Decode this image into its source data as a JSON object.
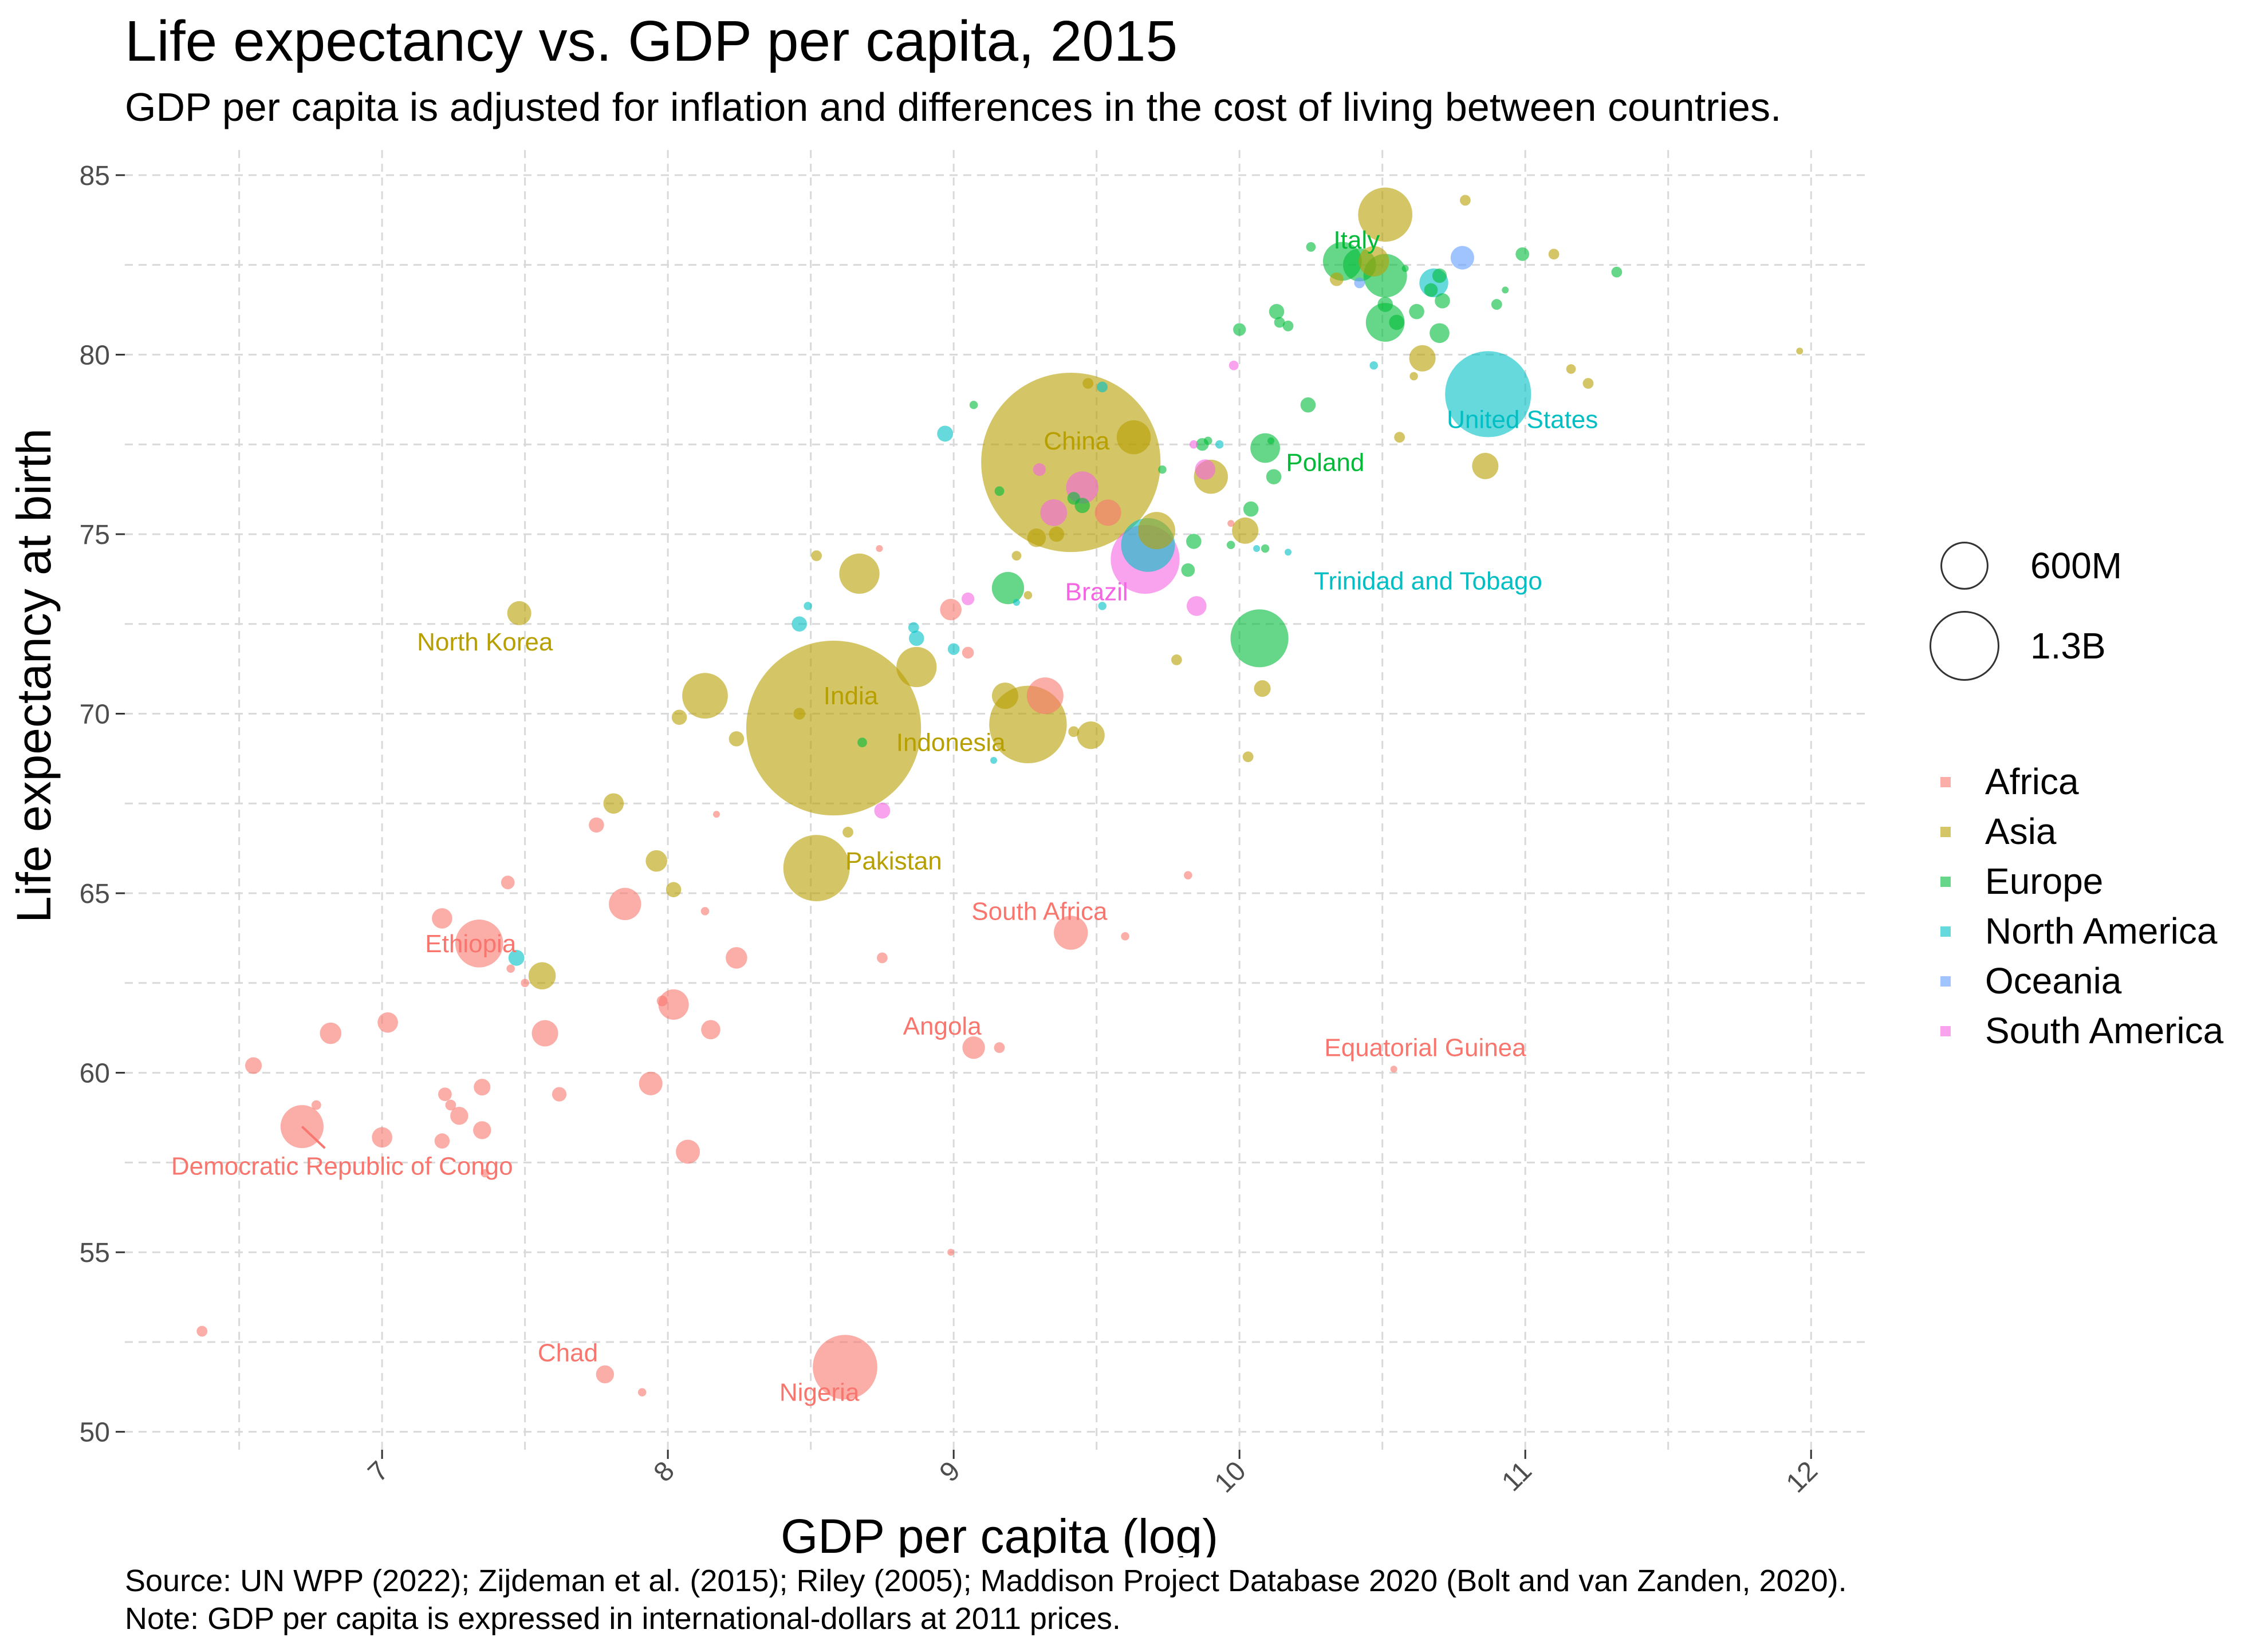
{
  "title": "Life expectancy vs. GDP per capita, 2015",
  "subtitle": "GDP per capita is adjusted for inflation and differences in the cost of living between countries.",
  "footer": {
    "source": "Source: UN WPP (2022); Zijdeman et al. (2015); Riley (2005); Maddison Project Database 2020 (Bolt and van Zanden, 2020).",
    "note": "Note: GDP per capita is expressed in international-dollars at 2011 prices."
  },
  "chart_data": {
    "type": "scatter",
    "title": "Life expectancy vs. GDP per capita, 2015",
    "xlabel": "GDP per capita (log)",
    "ylabel": "Life expectancy at birth",
    "xlim": [
      6.1,
      12.2
    ],
    "ylim": [
      49.5,
      85.7
    ],
    "x_ticks": [
      7,
      8,
      9,
      10,
      11,
      12
    ],
    "y_ticks": [
      50,
      55,
      60,
      65,
      70,
      75,
      80,
      85
    ],
    "grid": true,
    "legend_position": "right",
    "colors": {
      "Africa": "#F8766D",
      "Asia": "#B79F00",
      "Europe": "#00BA38",
      "North America": "#00BFC4",
      "Oceania": "#619CFF",
      "South America": "#F564E3"
    },
    "size_legend": [
      {
        "label": "600M",
        "population": 600000000
      },
      {
        "label": "1.3B",
        "population": 1300000000
      }
    ],
    "series": [
      {
        "name": "Africa",
        "points": [
          [
            6.37,
            52.8,
            5
          ],
          [
            6.55,
            60.2,
            12
          ],
          [
            6.72,
            58.5,
            80
          ],
          [
            6.77,
            59.1,
            4
          ],
          [
            6.82,
            61.1,
            20
          ],
          [
            7.0,
            58.2,
            18
          ],
          [
            7.02,
            61.4,
            18
          ],
          [
            7.21,
            64.3,
            18
          ],
          [
            7.21,
            58.1,
            10
          ],
          [
            7.22,
            59.4,
            8
          ],
          [
            7.24,
            59.1,
            5
          ],
          [
            7.27,
            58.8,
            14
          ],
          [
            7.34,
            63.6,
            99
          ],
          [
            7.35,
            59.6,
            12
          ],
          [
            7.35,
            58.4,
            14
          ],
          [
            7.36,
            57.2,
            3
          ],
          [
            7.44,
            65.3,
            8
          ],
          [
            7.45,
            62.9,
            3
          ],
          [
            7.5,
            62.5,
            3
          ],
          [
            7.57,
            61.1,
            30
          ],
          [
            7.62,
            59.4,
            9
          ],
          [
            7.75,
            66.9,
            10
          ],
          [
            7.78,
            51.6,
            14
          ],
          [
            7.85,
            64.7,
            45
          ],
          [
            7.91,
            51.1,
            3
          ],
          [
            7.94,
            59.7,
            24
          ],
          [
            7.98,
            62.0,
            5
          ],
          [
            8.02,
            61.9,
            40
          ],
          [
            8.07,
            57.8,
            25
          ],
          [
            8.13,
            64.5,
            3
          ],
          [
            8.15,
            61.2,
            16
          ],
          [
            8.17,
            67.2,
            2
          ],
          [
            8.24,
            63.2,
            20
          ],
          [
            8.62,
            51.8,
            180
          ],
          [
            8.74,
            74.6,
            1
          ],
          [
            8.75,
            63.2,
            5
          ],
          [
            8.99,
            72.9,
            20
          ],
          [
            8.99,
            55.0,
            1
          ],
          [
            9.05,
            71.7,
            6
          ],
          [
            9.07,
            60.7,
            22
          ],
          [
            9.16,
            60.7,
            5
          ],
          [
            9.32,
            70.5,
            58
          ],
          [
            9.41,
            63.9,
            50
          ],
          [
            9.54,
            75.6,
            30
          ],
          [
            9.6,
            63.8,
            3
          ],
          [
            9.82,
            65.5,
            3
          ],
          [
            9.97,
            75.3,
            1
          ],
          [
            10.54,
            60.1,
            1
          ]
        ]
      },
      {
        "name": "Asia",
        "points": [
          [
            7.48,
            72.8,
            25
          ],
          [
            7.56,
            62.7,
            32
          ],
          [
            7.81,
            67.5,
            18
          ],
          [
            7.96,
            65.9,
            20
          ],
          [
            8.02,
            65.1,
            10
          ],
          [
            8.04,
            69.9,
            10
          ],
          [
            8.13,
            70.5,
            90
          ],
          [
            8.24,
            69.3,
            10
          ],
          [
            8.46,
            70.0,
            6
          ],
          [
            8.52,
            74.4,
            5
          ],
          [
            8.52,
            65.7,
            190
          ],
          [
            8.58,
            69.6,
            1320
          ],
          [
            8.63,
            66.7,
            5
          ],
          [
            8.67,
            73.9,
            70
          ],
          [
            8.87,
            71.3,
            70
          ],
          [
            9.18,
            70.5,
            30
          ],
          [
            9.22,
            74.4,
            4
          ],
          [
            9.26,
            73.3,
            3
          ],
          [
            9.26,
            69.7,
            260
          ],
          [
            9.29,
            74.9,
            15
          ],
          [
            9.36,
            75.0,
            10
          ],
          [
            9.41,
            77.0,
            1390
          ],
          [
            9.42,
            69.5,
            5
          ],
          [
            9.47,
            79.2,
            5
          ],
          [
            9.48,
            69.4,
            33
          ],
          [
            9.63,
            77.7,
            50
          ],
          [
            9.71,
            75.1,
            60
          ],
          [
            9.78,
            71.5,
            5
          ],
          [
            9.9,
            76.6,
            50
          ],
          [
            10.02,
            75.1,
            30
          ],
          [
            10.03,
            68.8,
            5
          ],
          [
            10.08,
            70.7,
            12
          ],
          [
            10.34,
            82.1,
            8
          ],
          [
            10.47,
            82.6,
            40
          ],
          [
            10.51,
            83.9,
            127
          ],
          [
            10.61,
            79.4,
            3
          ],
          [
            10.64,
            79.9,
            30
          ],
          [
            10.56,
            77.7,
            5
          ],
          [
            10.79,
            84.3,
            5
          ],
          [
            10.86,
            76.9,
            30
          ],
          [
            11.1,
            82.8,
            5
          ],
          [
            11.16,
            79.6,
            4
          ],
          [
            11.22,
            79.2,
            5
          ],
          [
            11.96,
            80.1,
            2
          ]
        ]
      },
      {
        "name": "Europe",
        "points": [
          [
            8.68,
            69.2,
            4
          ],
          [
            9.07,
            78.6,
            3
          ],
          [
            9.16,
            76.2,
            4
          ],
          [
            9.19,
            73.5,
            45
          ],
          [
            9.42,
            76.0,
            7
          ],
          [
            9.45,
            75.8,
            10
          ],
          [
            9.73,
            76.8,
            3
          ],
          [
            9.82,
            74.0,
            8
          ],
          [
            9.84,
            74.8,
            10
          ],
          [
            9.87,
            77.5,
            7
          ],
          [
            9.89,
            77.6,
            3
          ],
          [
            9.97,
            74.7,
            3
          ],
          [
            10.0,
            80.7,
            7
          ],
          [
            10.04,
            75.7,
            10
          ],
          [
            10.07,
            72.1,
            145
          ],
          [
            10.09,
            74.6,
            3
          ],
          [
            10.09,
            77.4,
            38
          ],
          [
            10.11,
            77.6,
            2
          ],
          [
            10.12,
            76.6,
            10
          ],
          [
            10.13,
            81.2,
            10
          ],
          [
            10.14,
            80.9,
            5
          ],
          [
            10.17,
            80.8,
            5
          ],
          [
            10.24,
            78.6,
            10
          ],
          [
            10.25,
            83.0,
            4
          ],
          [
            10.36,
            82.6,
            65
          ],
          [
            10.42,
            82.5,
            47
          ],
          [
            10.51,
            80.9,
            65
          ],
          [
            10.51,
            82.2,
            82
          ],
          [
            10.51,
            81.4,
            10
          ],
          [
            10.55,
            80.9,
            10
          ],
          [
            10.58,
            82.4,
            2
          ],
          [
            10.62,
            81.2,
            10
          ],
          [
            10.67,
            81.8,
            8
          ],
          [
            10.7,
            80.6,
            17
          ],
          [
            10.7,
            82.2,
            9
          ],
          [
            10.71,
            81.5,
            10
          ],
          [
            10.9,
            81.4,
            5
          ],
          [
            10.93,
            81.8,
            1
          ],
          [
            10.99,
            82.8,
            8
          ],
          [
            11.32,
            82.3,
            5
          ]
        ]
      },
      {
        "name": "North America",
        "points": [
          [
            8.46,
            72.5,
            10
          ],
          [
            8.49,
            73.0,
            3
          ],
          [
            8.86,
            72.4,
            5
          ],
          [
            8.87,
            72.1,
            10
          ],
          [
            8.97,
            77.8,
            11
          ],
          [
            9.0,
            71.8,
            6
          ],
          [
            9.14,
            68.7,
            1
          ],
          [
            9.22,
            73.1,
            1
          ],
          [
            9.52,
            73.0,
            3
          ],
          [
            9.52,
            79.1,
            5
          ],
          [
            9.68,
            74.7,
            125
          ],
          [
            9.93,
            77.5,
            3
          ],
          [
            10.06,
            74.6,
            1
          ],
          [
            10.17,
            74.5,
            2
          ],
          [
            10.47,
            79.7,
            3
          ],
          [
            10.68,
            82.0,
            36
          ],
          [
            10.87,
            78.9,
            320
          ],
          [
            7.47,
            63.2,
            11
          ]
        ]
      },
      {
        "name": "Oceania",
        "points": [
          [
            10.42,
            82.0,
            5
          ],
          [
            10.78,
            82.7,
            24
          ]
        ]
      },
      {
        "name": "South America",
        "points": [
          [
            8.75,
            67.3,
            11
          ],
          [
            9.05,
            73.2,
            7
          ],
          [
            9.3,
            76.8,
            7
          ],
          [
            9.35,
            75.6,
            31
          ],
          [
            9.45,
            76.3,
            45
          ],
          [
            9.67,
            74.3,
            205
          ],
          [
            9.84,
            77.5,
            3
          ],
          [
            9.85,
            73.0,
            17
          ],
          [
            9.88,
            76.8,
            18
          ],
          [
            9.98,
            79.7,
            4
          ]
        ]
      }
    ],
    "annotations": [
      {
        "text": "Italy",
        "x": 10.41,
        "y": 83.2,
        "series": "Europe",
        "anchor": "middle"
      },
      {
        "text": "United States",
        "x": 10.99,
        "y": 78.2,
        "series": "North America",
        "anchor": "middle"
      },
      {
        "text": "China",
        "x": 9.43,
        "y": 77.6,
        "series": "Asia",
        "anchor": "middle"
      },
      {
        "text": "Poland",
        "x": 10.3,
        "y": 77.0,
        "series": "Europe",
        "anchor": "middle"
      },
      {
        "text": "Brazil",
        "x": 9.5,
        "y": 73.4,
        "series": "South America",
        "anchor": "middle"
      },
      {
        "text": "Trinidad and Tobago",
        "x": 10.66,
        "y": 73.7,
        "series": "North America",
        "anchor": "middle"
      },
      {
        "text": "North Korea",
        "x": 7.36,
        "y": 72.0,
        "series": "Asia",
        "anchor": "middle"
      },
      {
        "text": "India",
        "x": 8.64,
        "y": 70.5,
        "series": "Asia",
        "anchor": "middle"
      },
      {
        "text": "Indonesia",
        "x": 8.99,
        "y": 69.2,
        "series": "Asia",
        "anchor": "middle"
      },
      {
        "text": "Pakistan",
        "x": 8.79,
        "y": 65.9,
        "series": "Asia",
        "anchor": "middle"
      },
      {
        "text": "South Africa",
        "x": 9.3,
        "y": 64.5,
        "series": "Africa",
        "anchor": "middle"
      },
      {
        "text": "Ethiopia",
        "x": 7.31,
        "y": 63.6,
        "series": "Africa",
        "anchor": "middle"
      },
      {
        "text": "Angola",
        "x": 8.96,
        "y": 61.3,
        "series": "Africa",
        "anchor": "middle"
      },
      {
        "text": "Equatorial Guinea",
        "x": 10.65,
        "y": 60.7,
        "series": "Africa",
        "anchor": "middle"
      },
      {
        "text": "Democratic Republic of Congo",
        "x": 6.86,
        "y": 57.4,
        "series": "Africa",
        "anchor": "middle"
      },
      {
        "text": "Chad",
        "x": 7.65,
        "y": 52.2,
        "series": "Africa",
        "anchor": "middle"
      },
      {
        "text": "Nigeria",
        "x": 8.53,
        "y": 51.1,
        "series": "Africa",
        "anchor": "middle"
      }
    ],
    "leader_lines": [
      {
        "from": [
          6.72,
          58.5
        ],
        "to": [
          6.8,
          57.9
        ],
        "series": "Africa"
      }
    ]
  }
}
